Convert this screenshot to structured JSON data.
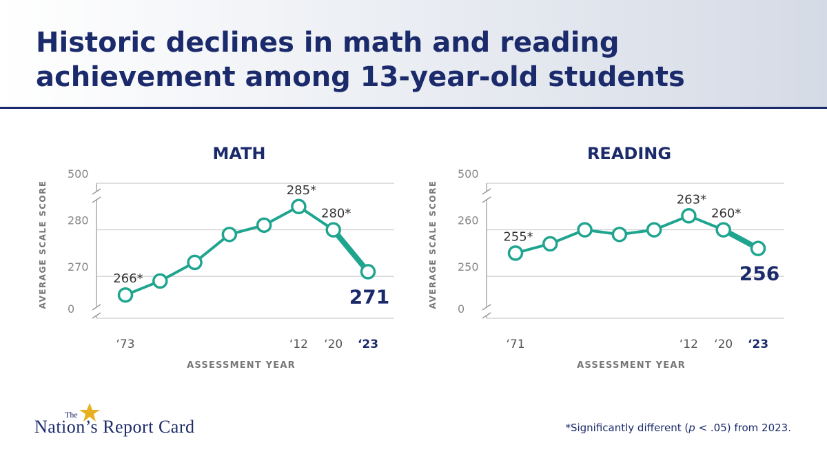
{
  "header": {
    "title": [
      "Historic declines in math and reading",
      "achievement among 13-year-old students"
    ]
  },
  "chart_data": [
    {
      "type": "line",
      "title": "MATH",
      "ylabel": "AVERAGE SCALE SCORE",
      "xlabel": "ASSESSMENT YEAR",
      "categories": [
        "‘73",
        null,
        null,
        null,
        null,
        "‘12",
        "‘20",
        "‘23"
      ],
      "values": [
        266,
        269,
        273,
        279,
        281,
        285,
        280,
        271
      ],
      "value_labels": [
        "266*",
        null,
        null,
        null,
        null,
        "285*",
        "280*",
        "271"
      ],
      "color": "#1fa58f",
      "ylim": [
        0,
        500
      ],
      "y_break": [
        261,
        290
      ],
      "yticks": [
        0,
        270,
        280,
        500
      ],
      "grid": true
    },
    {
      "type": "line",
      "title": "READING",
      "ylabel": "AVERAGE SCALE SCORE",
      "xlabel": "ASSESSMENT YEAR",
      "categories": [
        "‘71",
        null,
        null,
        null,
        null,
        "‘12",
        "‘20",
        "‘23"
      ],
      "values": [
        255,
        257,
        260,
        259,
        260,
        263,
        260,
        256
      ],
      "value_labels": [
        "255*",
        null,
        null,
        null,
        null,
        "263*",
        "260*",
        "256"
      ],
      "color": "#1fa58f",
      "ylim": [
        0,
        500
      ],
      "y_break": [
        241,
        270
      ],
      "yticks": [
        0,
        250,
        260,
        500
      ],
      "grid": true
    }
  ],
  "footnote": [
    "*Significantly different (",
    "p",
    " < .05) from 2023."
  ],
  "logo": {
    "small": "The",
    "name": "Nation’s Report Card"
  }
}
